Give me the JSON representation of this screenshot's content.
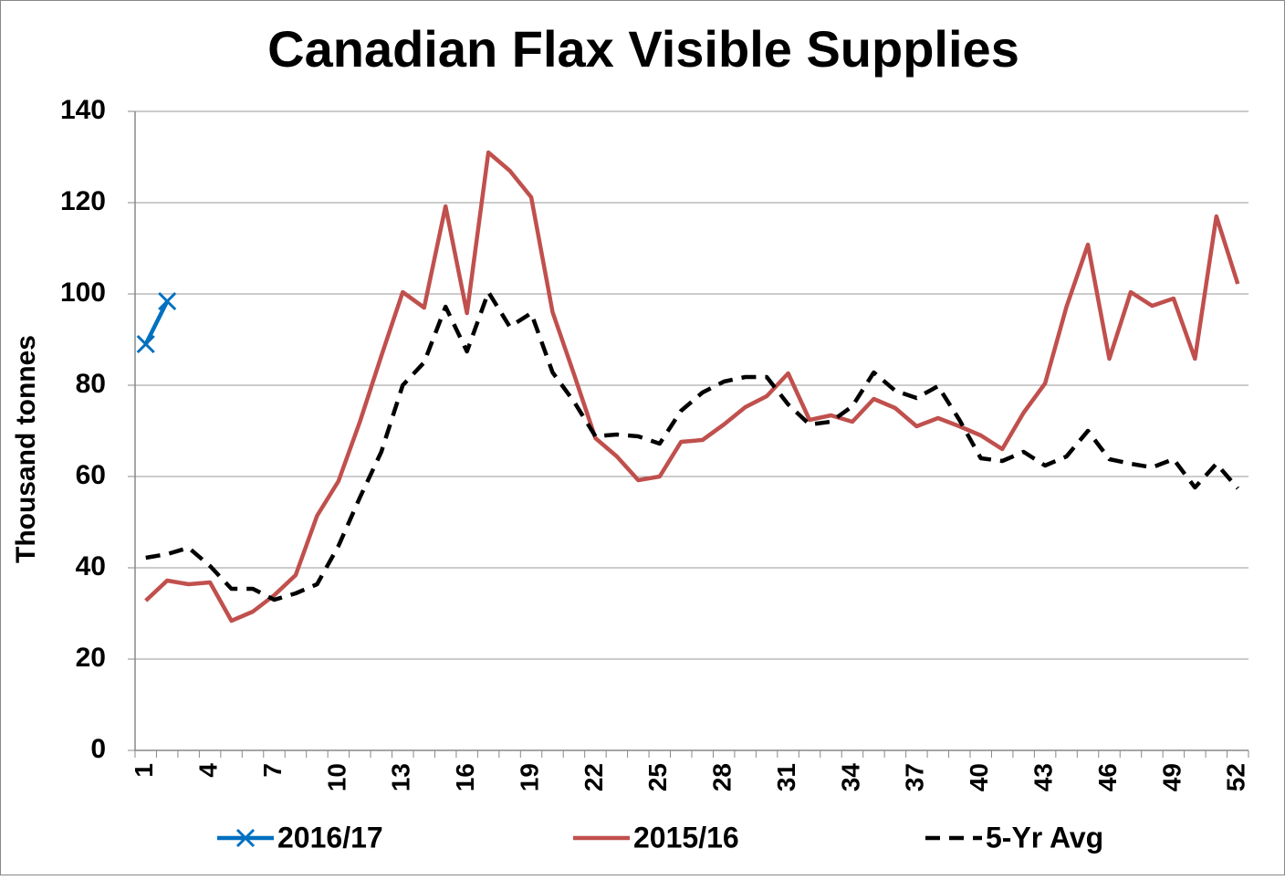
{
  "chart_data": {
    "type": "line",
    "title": "Canadian Flax Visible Supplies",
    "y_label": "Thousand tonnes",
    "categories": [
      "1",
      null,
      null,
      "4",
      null,
      null,
      "7",
      null,
      null,
      "10",
      null,
      null,
      "13",
      null,
      null,
      "16",
      null,
      null,
      "19",
      null,
      null,
      "22",
      null,
      null,
      "25",
      null,
      null,
      "28",
      null,
      null,
      "31",
      null,
      null,
      "34",
      null,
      null,
      "37",
      null,
      null,
      "40",
      null,
      null,
      "43",
      null,
      null,
      "46",
      null,
      null,
      "49",
      null,
      null,
      "52"
    ],
    "ylim": [
      0,
      140
    ],
    "yticks": [
      0,
      20,
      40,
      60,
      80,
      100,
      120,
      140
    ],
    "grid": true,
    "legend": "bottom",
    "series": [
      {
        "name": "2016/17",
        "color": "#0070c0",
        "marker": "x",
        "dashed": false,
        "values": [
          89,
          98.4,
          null,
          null,
          null,
          null,
          null,
          null,
          null,
          null,
          null,
          null,
          null,
          null,
          null,
          null,
          null,
          null,
          null,
          null,
          null,
          null,
          null,
          null,
          null,
          null,
          null,
          null,
          null,
          null,
          null,
          null,
          null,
          null,
          null,
          null,
          null,
          null,
          null,
          null,
          null,
          null,
          null,
          null,
          null,
          null,
          null,
          null,
          null,
          null,
          null,
          null
        ]
      },
      {
        "name": "2015/16",
        "color": "#c0504d",
        "marker": "none",
        "dashed": false,
        "values": [
          32.8,
          37.2,
          36.4,
          36.8,
          28.4,
          30.4,
          34,
          38.4,
          51.4,
          59,
          72,
          86.4,
          100.4,
          97,
          119.2,
          95.8,
          131,
          127,
          121.2,
          96,
          82.4,
          68.4,
          64.4,
          59.2,
          60,
          67.6,
          68,
          71.4,
          75.2,
          77.6,
          82.6,
          72.4,
          73.4,
          72,
          77,
          75,
          71,
          72.8,
          71,
          69,
          66,
          74,
          80.4,
          97.2,
          110.8,
          85.8,
          100.4,
          97.4,
          99,
          85.8,
          117,
          102.2
        ]
      },
      {
        "name": "5-Yr Avg",
        "color": "#000000",
        "marker": "none",
        "dashed": true,
        "values": [
          42.2,
          43,
          44.4,
          40.4,
          35.4,
          35.4,
          33,
          34.4,
          36.4,
          44.8,
          55.4,
          65.4,
          80,
          85,
          97.2,
          87.4,
          100.4,
          92.8,
          95.8,
          82.8,
          76.4,
          68.8,
          69.2,
          68.8,
          67.2,
          74.4,
          78.4,
          80.8,
          81.8,
          81.8,
          75.8,
          71.4,
          72,
          75.4,
          82.8,
          78.8,
          77.2,
          79.8,
          72.4,
          64,
          63.4,
          65.4,
          62.4,
          64.4,
          70,
          63.8,
          62.8,
          62,
          63.8,
          57.6,
          62.8,
          57.4
        ]
      }
    ]
  }
}
